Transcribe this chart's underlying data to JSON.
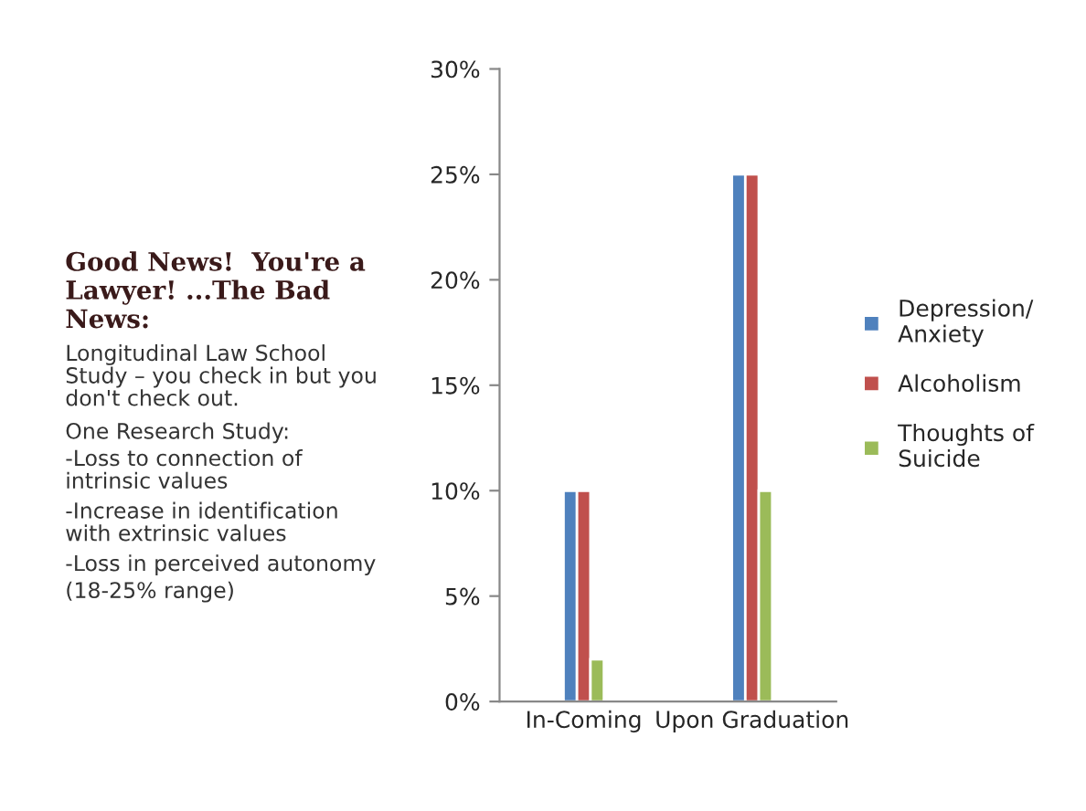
{
  "chart_data": {
    "type": "bar",
    "title": "Good News!  You're a Lawyer! ...The Bad News:",
    "categories": [
      "In-Coming",
      "Upon Graduation"
    ],
    "series": [
      {
        "name": "Depression/ Anxiety",
        "color": "#4f81bd",
        "values": [
          10,
          25
        ]
      },
      {
        "name": "Alcoholism",
        "color": "#c0504d",
        "values": [
          10,
          25
        ]
      },
      {
        "name": "Thoughts of Suicide",
        "color": "#9bbb59",
        "values": [
          2,
          10
        ]
      }
    ],
    "ylim": [
      0,
      30
    ],
    "yticks": [
      {
        "value": 0,
        "label": "0%"
      },
      {
        "value": 5,
        "label": "5%"
      },
      {
        "value": 10,
        "label": "10%"
      },
      {
        "value": 15,
        "label": "15%"
      },
      {
        "value": 20,
        "label": "20%"
      },
      {
        "value": 25,
        "label": "25%"
      },
      {
        "value": 30,
        "label": "30%"
      }
    ],
    "grid": false,
    "legend": "right",
    "annotations": [
      "Longitudinal Law School Study – you check in but you don't check out.",
      "One Research Study:",
      "-Loss to connection of intrinsic values",
      "-Increase in identification with extrinsic values",
      "-Loss in perceived autonomy",
      "(18-25% range)"
    ]
  }
}
